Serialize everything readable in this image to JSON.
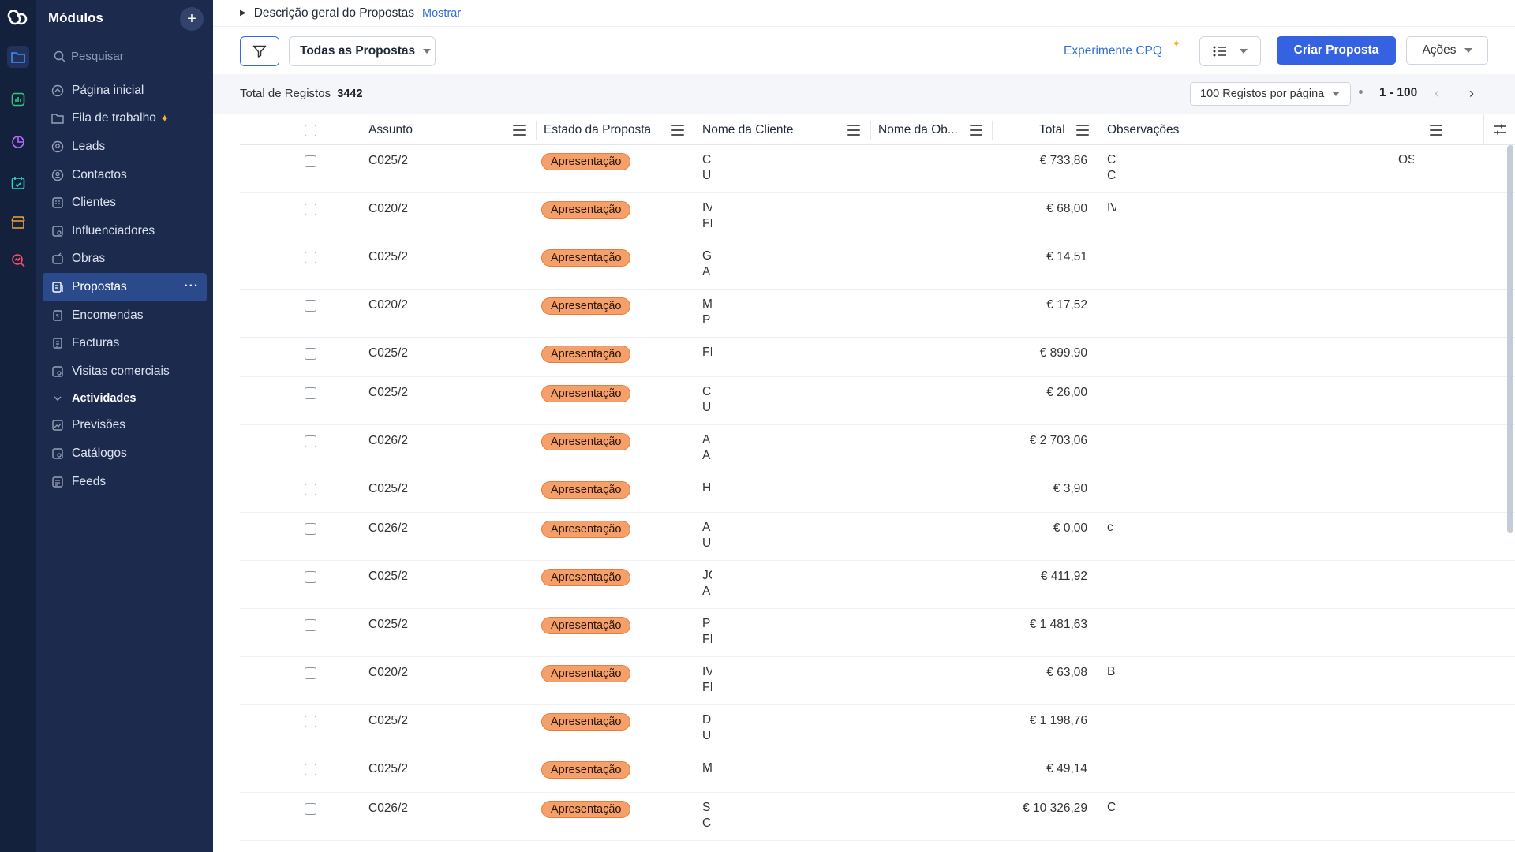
{
  "sidebar": {
    "title": "Módulos",
    "add": "+",
    "search_placeholder": "Pesquisar",
    "items": [
      {
        "label": "Página inicial"
      },
      {
        "label": "Fila de trabalho",
        "spark": "✦"
      },
      {
        "label": "Leads"
      },
      {
        "label": "Contactos"
      },
      {
        "label": "Clientes"
      },
      {
        "label": "Influenciadores"
      },
      {
        "label": "Obras"
      },
      {
        "label": "Propostas",
        "active": true,
        "more": "···"
      },
      {
        "label": "Encomendas"
      },
      {
        "label": "Facturas"
      },
      {
        "label": "Visitas comerciais"
      },
      {
        "label": "Actividades",
        "group": true
      },
      {
        "label": "Previsões"
      },
      {
        "label": "Catálogos"
      },
      {
        "label": "Feeds"
      }
    ]
  },
  "header": {
    "overview_label": "Descrição geral do Propostas",
    "show_link": "Mostrar"
  },
  "toolbar": {
    "view_label": "Todas as Propostas",
    "cpq_label": "Experimente CPQ",
    "create_label": "Criar Proposta",
    "actions_label": "Ações"
  },
  "summary": {
    "total_label": "Total de Registos",
    "total_value": "3442",
    "per_page_label": "100 Registos por página",
    "range_label": "1 - 100"
  },
  "table": {
    "columns": [
      "Assunto",
      "Estado da Proposta",
      "Nome da Cliente",
      "Nome da Ob...",
      "Total",
      "Observações"
    ],
    "rows": [
      {
        "subject": "C025/2",
        "status": "Apresentação",
        "client": "C\nU",
        "total": "€ 733,86",
        "obs": "C\nC",
        "extra": "OS"
      },
      {
        "subject": "C020/2",
        "status": "Apresentação",
        "client": "IV\nFI",
        "total": "€ 68,00",
        "obs": "IV",
        "extra": ""
      },
      {
        "subject": "C025/2",
        "status": "Apresentação",
        "client": "G\nA",
        "total": "€ 14,51",
        "obs": "",
        "extra": ""
      },
      {
        "subject": "C020/2",
        "status": "Apresentação",
        "client": "M\nP",
        "total": "€ 17,52",
        "obs": "",
        "extra": ""
      },
      {
        "subject": "C025/2",
        "status": "Apresentação",
        "client": "FI",
        "total": "€ 899,90",
        "obs": "",
        "extra": ""
      },
      {
        "subject": "C025/2",
        "status": "Apresentação",
        "client": "C\nU",
        "total": "€ 26,00",
        "obs": "",
        "extra": ""
      },
      {
        "subject": "C026/2",
        "status": "Apresentação",
        "client": "A\nA",
        "total": "€ 2 703,06",
        "obs": "",
        "extra": ""
      },
      {
        "subject": "C025/2",
        "status": "Apresentação",
        "client": "H",
        "total": "€ 3,90",
        "obs": "",
        "extra": ""
      },
      {
        "subject": "C026/2",
        "status": "Apresentação",
        "client": "A\nU",
        "total": "€ 0,00",
        "obs": "c",
        "extra": ""
      },
      {
        "subject": "C025/2",
        "status": "Apresentação",
        "client": "JO\nA",
        "total": "€ 411,92",
        "obs": "",
        "extra": ""
      },
      {
        "subject": "C025/2",
        "status": "Apresentação",
        "client": "P\nFI",
        "total": "€ 1 481,63",
        "obs": "",
        "extra": ""
      },
      {
        "subject": "C020/2",
        "status": "Apresentação",
        "client": "IV\nFI",
        "total": "€ 63,08",
        "obs": "B",
        "extra": ""
      },
      {
        "subject": "C025/2",
        "status": "Apresentação",
        "client": "D\nU",
        "total": "€ 1 198,76",
        "obs": "",
        "extra": ""
      },
      {
        "subject": "C025/2",
        "status": "Apresentação",
        "client": "M",
        "total": "€ 49,14",
        "obs": "",
        "extra": ""
      },
      {
        "subject": "C026/2",
        "status": "Apresentação",
        "client": "S\nC",
        "total": "€ 10 326,29",
        "obs": "C",
        "extra": ""
      }
    ]
  },
  "colors": {
    "accent": "#3562e1",
    "sidebar_bg": "#1c2a4e",
    "badge_bg": "#f5a06b"
  }
}
